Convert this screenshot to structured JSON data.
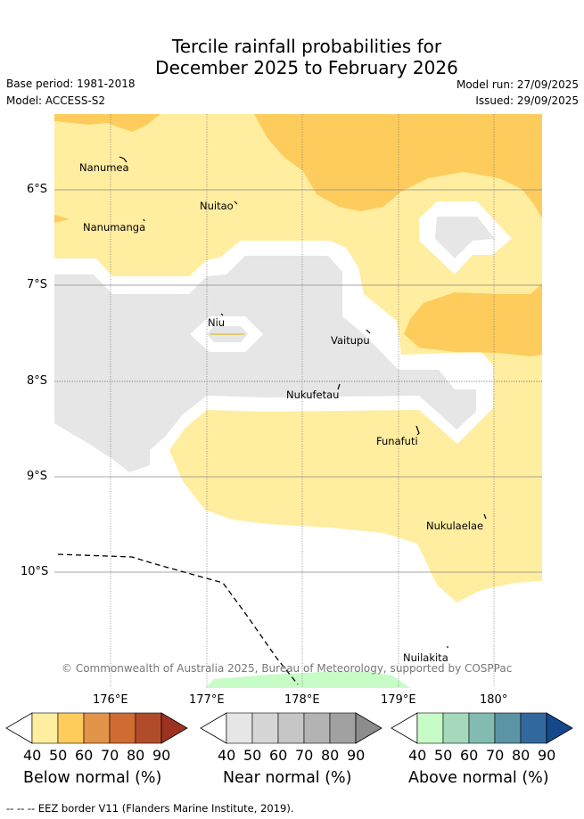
{
  "title": {
    "line1": "Tercile rainfall probabilities for",
    "line2": "December 2025 to February 2026"
  },
  "meta": {
    "base_period": "Base period: 1981-2018",
    "model": "Model: ACCESS-S2",
    "model_run": "Model run: 27/09/2025",
    "issued": "Issued: 29/09/2025"
  },
  "map": {
    "lat_labels": [
      "6°S",
      "7°S",
      "8°S",
      "9°S",
      "10°S"
    ],
    "lon_labels": [
      "176°E",
      "177°E",
      "178°E",
      "179°E",
      "180°"
    ],
    "places": [
      "Nanumea",
      "Nuitao",
      "Nanumanga",
      "Niu",
      "Vaitupu",
      "Nukufetau",
      "Funafuti",
      "Nukulaelae",
      "Nuilakita"
    ],
    "copyright": "© Commonwealth of Australia 2025, Bureau of Meteorology, supported by COSPPac",
    "colors": {
      "below_40": "#ffeda0",
      "below_50": "#fecc5c",
      "near_40": "#e6e6e6",
      "above_40": "#c7fcc7"
    }
  },
  "legend": {
    "ticks": [
      "40",
      "50",
      "60",
      "70",
      "80",
      "90"
    ],
    "below": {
      "title": "Below normal (%)",
      "colors": [
        "#ffeda0",
        "#fecc5c",
        "#e2944a",
        "#d06b33",
        "#b14c2a",
        "#9d3222"
      ]
    },
    "near": {
      "title": "Near normal (%)",
      "colors": [
        "#e6e6e6",
        "#d6d6d6",
        "#c6c6c6",
        "#b3b3b3",
        "#a1a1a1",
        "#8c8c8c"
      ]
    },
    "above": {
      "title": "Above normal (%)",
      "colors": [
        "#c7fcc7",
        "#a4d9bc",
        "#82bbb1",
        "#5b94a5",
        "#33689e",
        "#13498a"
      ]
    }
  },
  "footer": {
    "eez": "--  --  -- EEZ border V11 (Flanders Marine Institute, 2019)."
  }
}
